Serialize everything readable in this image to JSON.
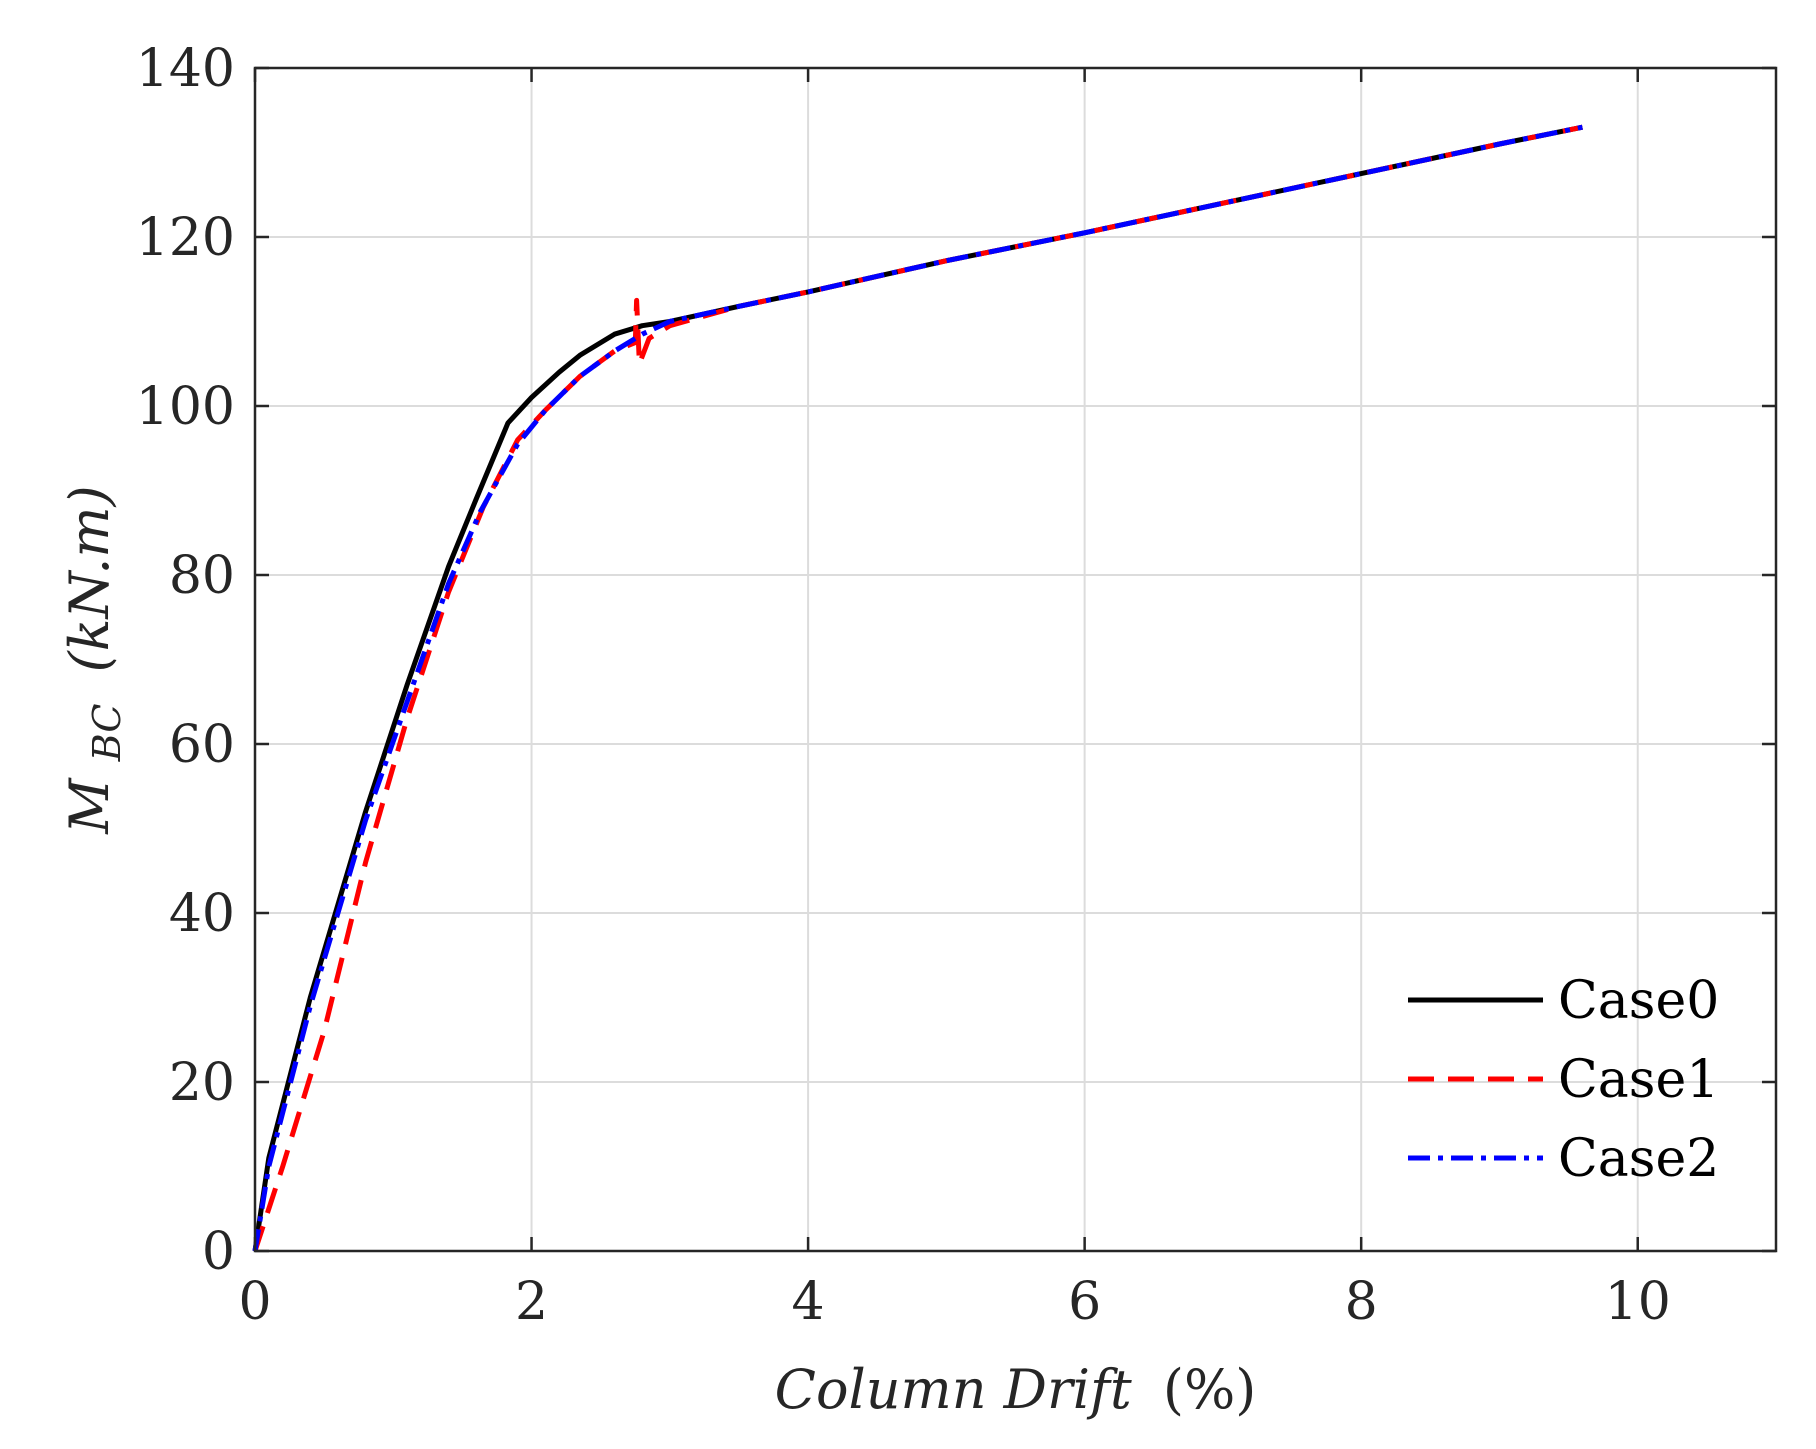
{
  "chart_data": {
    "type": "line",
    "title": "",
    "xlabel": {
      "italic": "Column Drift",
      "upright": "(%)"
    },
    "ylabel": {
      "symbol": "M",
      "subscript": "BC",
      "unit": "(kN.m)"
    },
    "xlim": [
      0,
      11
    ],
    "ylim": [
      0,
      140
    ],
    "xticks": [
      0,
      2,
      4,
      6,
      8,
      10
    ],
    "yticks": [
      0,
      20,
      40,
      60,
      80,
      100,
      120,
      140
    ],
    "grid": true,
    "legend_position": "bottom-right",
    "series": [
      {
        "name": "Case0",
        "color": "#000000",
        "style": "solid",
        "x": [
          0,
          0.1,
          0.4,
          0.8,
          1.1,
          1.4,
          1.6,
          1.83,
          2.0,
          2.2,
          2.35,
          2.6,
          2.8,
          3.0,
          3.5,
          4.0,
          5.0,
          6.0,
          7.0,
          8.0,
          9.0,
          9.6
        ],
        "y": [
          0,
          11,
          30,
          52,
          67,
          81,
          89,
          98,
          101,
          104,
          106,
          108.5,
          109.5,
          110,
          111.8,
          113.5,
          117.2,
          120.5,
          124,
          127.5,
          131,
          133
        ]
      },
      {
        "name": "Case1",
        "color": "#ff0000",
        "style": "dashed",
        "x": [
          0,
          0.1,
          0.2,
          0.5,
          0.8,
          1.1,
          1.4,
          1.65,
          1.9,
          2.1,
          2.35,
          2.6,
          2.75,
          2.76,
          2.78,
          2.85,
          3.0,
          3.5,
          4.0,
          5.0,
          6.0,
          7.0,
          8.0,
          9.0,
          9.6
        ],
        "y": [
          0,
          5,
          10,
          26,
          46,
          63,
          78,
          88,
          96,
          99.5,
          103.5,
          106.5,
          107.5,
          112.5,
          105,
          108,
          109.5,
          111.8,
          113.5,
          117.2,
          120.5,
          124,
          127.5,
          131,
          133
        ]
      },
      {
        "name": "Case2",
        "color": "#0000ff",
        "style": "dashdot",
        "x": [
          0,
          0.1,
          0.4,
          0.8,
          1.1,
          1.4,
          1.63,
          1.9,
          2.1,
          2.35,
          2.6,
          2.8,
          3.0,
          3.5,
          4.0,
          5.0,
          6.0,
          7.0,
          8.0,
          9.0,
          9.6
        ],
        "y": [
          0,
          10,
          29,
          51,
          65,
          79,
          87.5,
          95.5,
          99.5,
          103.5,
          106.5,
          108.5,
          110,
          111.8,
          113.5,
          117.2,
          120.5,
          124,
          127.5,
          131,
          133
        ]
      }
    ]
  }
}
